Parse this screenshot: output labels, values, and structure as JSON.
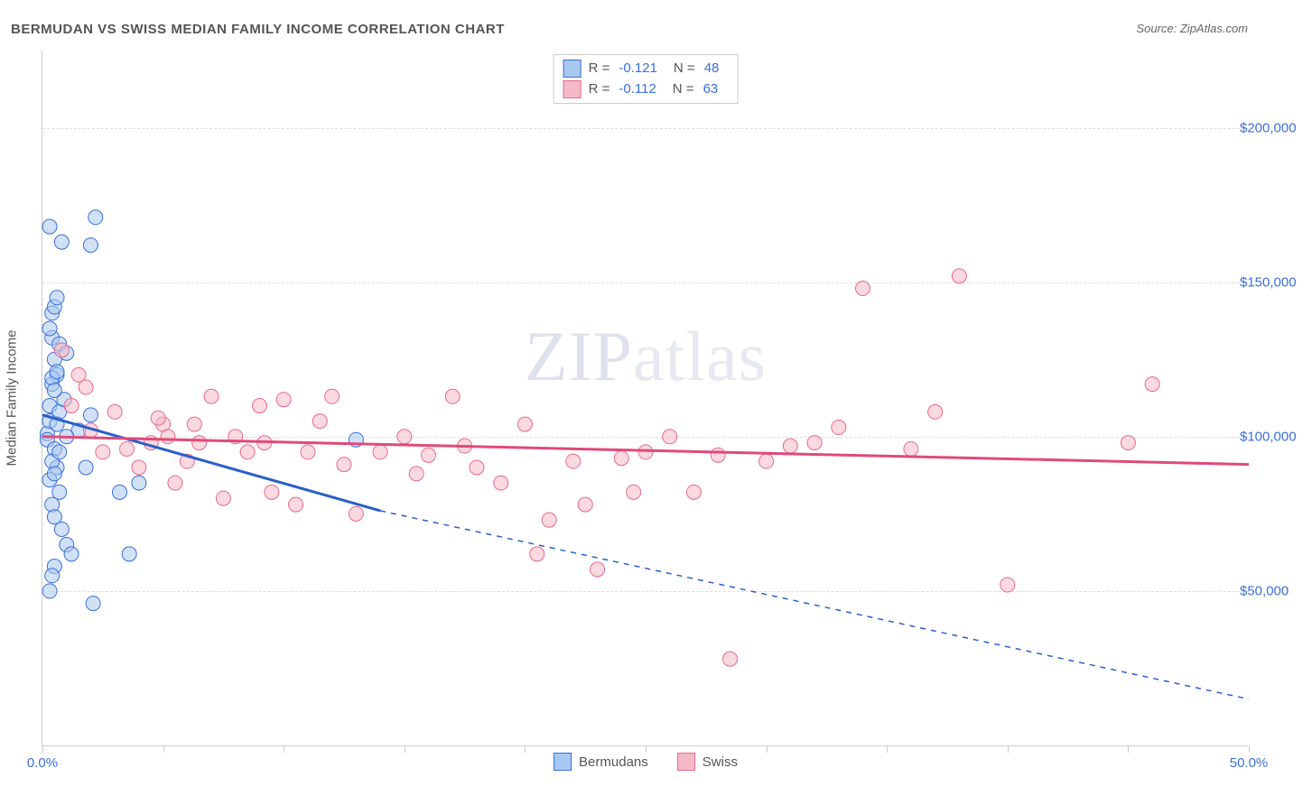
{
  "title": "BERMUDAN VS SWISS MEDIAN FAMILY INCOME CORRELATION CHART",
  "source": "Source: ZipAtlas.com",
  "watermark": {
    "left": "ZIP",
    "right": "atlas"
  },
  "y_axis": {
    "title": "Median Family Income"
  },
  "chart": {
    "type": "scatter",
    "background_color": "#ffffff",
    "grid_color": "#dddddd",
    "axis_color": "#cccccc",
    "label_color": "#3a6fd8",
    "text_color": "#555555",
    "title_fontsize": 15,
    "label_fontsize": 15,
    "xlim": [
      0,
      50
    ],
    "ylim": [
      0,
      225000
    ],
    "x_ticks": [
      0,
      5,
      10,
      15,
      20,
      25,
      30,
      35,
      40,
      45,
      50
    ],
    "x_tick_labels": {
      "0": "0.0%",
      "50": "50.0%"
    },
    "y_gridlines": [
      50000,
      100000,
      150000,
      200000
    ],
    "y_tick_labels": {
      "50000": "$50,000",
      "100000": "$100,000",
      "150000": "$150,000",
      "200000": "$200,000"
    },
    "marker_radius": 8,
    "marker_opacity": 0.55,
    "trend_line_width": 3
  },
  "series": [
    {
      "name": "Bermudans",
      "fill": "#a9c8f0",
      "stroke": "#3a6fd8",
      "trend_color": "#2a5fc8",
      "R": "-0.121",
      "N": "48",
      "trend": {
        "x1": 0,
        "y1": 107000,
        "x2": 14,
        "y2": 76000,
        "dash_x2": 50,
        "dash_y2": 15000
      },
      "points": [
        [
          0.2,
          101000
        ],
        [
          0.3,
          105000
        ],
        [
          0.4,
          140000
        ],
        [
          0.5,
          142000
        ],
        [
          0.4,
          132000
        ],
        [
          0.6,
          145000
        ],
        [
          0.7,
          130000
        ],
        [
          0.3,
          168000
        ],
        [
          0.8,
          163000
        ],
        [
          0.5,
          125000
        ],
        [
          0.6,
          120000
        ],
        [
          0.4,
          117000
        ],
        [
          0.3,
          110000
        ],
        [
          0.7,
          108000
        ],
        [
          0.2,
          99000
        ],
        [
          0.5,
          96000
        ],
        [
          0.6,
          90000
        ],
        [
          0.3,
          86000
        ],
        [
          0.7,
          82000
        ],
        [
          0.4,
          78000
        ],
        [
          0.5,
          74000
        ],
        [
          0.8,
          70000
        ],
        [
          1.0,
          65000
        ],
        [
          1.2,
          62000
        ],
        [
          2.2,
          171000
        ],
        [
          2.0,
          162000
        ],
        [
          0.3,
          50000
        ],
        [
          2.1,
          46000
        ],
        [
          3.6,
          62000
        ],
        [
          3.2,
          82000
        ],
        [
          1.5,
          102000
        ],
        [
          1.8,
          90000
        ],
        [
          2.0,
          107000
        ],
        [
          4.0,
          85000
        ],
        [
          0.5,
          58000
        ],
        [
          0.4,
          55000
        ],
        [
          0.9,
          112000
        ],
        [
          1.0,
          127000
        ],
        [
          13.0,
          99000
        ],
        [
          1.0,
          100000
        ],
        [
          0.6,
          104000
        ],
        [
          0.4,
          119000
        ],
        [
          0.5,
          115000
        ],
        [
          0.6,
          121000
        ],
        [
          0.4,
          92000
        ],
        [
          0.5,
          88000
        ],
        [
          0.7,
          95000
        ],
        [
          0.3,
          135000
        ]
      ]
    },
    {
      "name": "Swiss",
      "fill": "#f6b9c7",
      "stroke": "#e86a8a",
      "trend_color": "#e04a78",
      "R": "-0.112",
      "N": "63",
      "trend": {
        "x1": 0,
        "y1": 100000,
        "x2": 50,
        "y2": 91000
      },
      "points": [
        [
          0.8,
          128000
        ],
        [
          1.2,
          110000
        ],
        [
          1.5,
          120000
        ],
        [
          2.0,
          102000
        ],
        [
          3.0,
          108000
        ],
        [
          4.0,
          90000
        ],
        [
          4.5,
          98000
        ],
        [
          5.0,
          104000
        ],
        [
          5.5,
          85000
        ],
        [
          6.0,
          92000
        ],
        [
          6.5,
          98000
        ],
        [
          7.0,
          113000
        ],
        [
          7.5,
          80000
        ],
        [
          8.0,
          100000
        ],
        [
          9.0,
          110000
        ],
        [
          9.5,
          82000
        ],
        [
          10.0,
          112000
        ],
        [
          10.5,
          78000
        ],
        [
          11.0,
          95000
        ],
        [
          12.0,
          113000
        ],
        [
          13.0,
          75000
        ],
        [
          14.0,
          95000
        ],
        [
          15.0,
          100000
        ],
        [
          16.0,
          94000
        ],
        [
          17.0,
          113000
        ],
        [
          18.0,
          90000
        ],
        [
          19.0,
          85000
        ],
        [
          20.0,
          104000
        ],
        [
          20.5,
          62000
        ],
        [
          21.0,
          73000
        ],
        [
          22.0,
          92000
        ],
        [
          22.5,
          78000
        ],
        [
          23.0,
          57000
        ],
        [
          24.0,
          93000
        ],
        [
          24.5,
          82000
        ],
        [
          25.0,
          95000
        ],
        [
          26.0,
          100000
        ],
        [
          27.0,
          82000
        ],
        [
          28.0,
          94000
        ],
        [
          28.5,
          28000
        ],
        [
          30.0,
          92000
        ],
        [
          31.0,
          97000
        ],
        [
          32.0,
          98000
        ],
        [
          33.0,
          103000
        ],
        [
          34.0,
          148000
        ],
        [
          36.0,
          96000
        ],
        [
          37.0,
          108000
        ],
        [
          38.0,
          152000
        ],
        [
          40.0,
          52000
        ],
        [
          45.0,
          98000
        ],
        [
          46.0,
          117000
        ],
        [
          5.2,
          100000
        ],
        [
          6.3,
          104000
        ],
        [
          8.5,
          95000
        ],
        [
          11.5,
          105000
        ],
        [
          12.5,
          91000
        ],
        [
          15.5,
          88000
        ],
        [
          17.5,
          97000
        ],
        [
          3.5,
          96000
        ],
        [
          4.8,
          106000
        ],
        [
          2.5,
          95000
        ],
        [
          1.8,
          116000
        ],
        [
          9.2,
          98000
        ]
      ]
    }
  ],
  "legend": {
    "s1": "Bermudans",
    "s2": "Swiss"
  },
  "stats_labels": {
    "r": "R =",
    "n": "N ="
  }
}
